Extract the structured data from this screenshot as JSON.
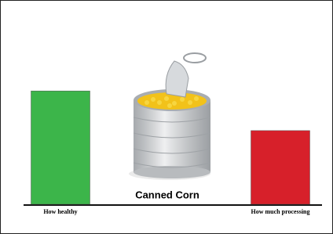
{
  "chart_data": {
    "type": "bar",
    "title": "Canned Corn",
    "categories": [
      "How healthy",
      "How much processing"
    ],
    "values": [
      8,
      5.2
    ],
    "colors": [
      "#3cb54a",
      "#d7202a"
    ],
    "ylim": [
      0,
      10
    ]
  }
}
